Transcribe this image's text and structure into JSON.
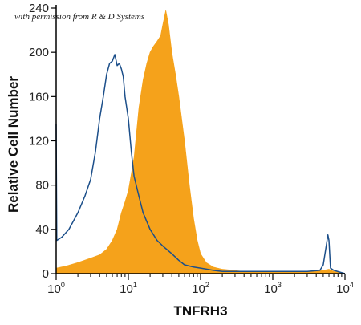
{
  "watermark": "with permission from R & D Systems",
  "chart_data": {
    "type": "area",
    "xlabel": "TNFRH3",
    "ylabel": "Relative Cell Number",
    "x_scale": "log",
    "xlim": [
      1,
      10000
    ],
    "ylim": [
      0,
      240
    ],
    "y_ticks": [
      0,
      40,
      80,
      120,
      160,
      200,
      240
    ],
    "x_ticks": [
      {
        "value": 1,
        "label": "10",
        "exp": "0"
      },
      {
        "value": 10,
        "label": "10",
        "exp": "1"
      },
      {
        "value": 100,
        "label": "10",
        "exp": "2"
      },
      {
        "value": 1000,
        "label": "10",
        "exp": "3"
      },
      {
        "value": 10000,
        "label": "10",
        "exp": "4"
      }
    ],
    "grid": false,
    "series": [
      {
        "style": "filled",
        "color": "#F5A21B",
        "points": [
          [
            1,
            5
          ],
          [
            1.4,
            7
          ],
          [
            2,
            10
          ],
          [
            3,
            14
          ],
          [
            4,
            17
          ],
          [
            5,
            22
          ],
          [
            6,
            30
          ],
          [
            7,
            40
          ],
          [
            8,
            55
          ],
          [
            9,
            65
          ],
          [
            10,
            75
          ],
          [
            12,
            105
          ],
          [
            14,
            150
          ],
          [
            16,
            175
          ],
          [
            18,
            190
          ],
          [
            20,
            200
          ],
          [
            22,
            205
          ],
          [
            25,
            210
          ],
          [
            28,
            215
          ],
          [
            30,
            225
          ],
          [
            33,
            238
          ],
          [
            36,
            225
          ],
          [
            40,
            200
          ],
          [
            45,
            180
          ],
          [
            50,
            160
          ],
          [
            60,
            120
          ],
          [
            70,
            80
          ],
          [
            80,
            50
          ],
          [
            90,
            30
          ],
          [
            100,
            18
          ],
          [
            120,
            10
          ],
          [
            150,
            6
          ],
          [
            200,
            4
          ],
          [
            400,
            2
          ],
          [
            1000,
            2
          ],
          [
            3000,
            2
          ],
          [
            5000,
            3
          ],
          [
            6000,
            4
          ],
          [
            7000,
            2
          ],
          [
            10000,
            0
          ]
        ]
      },
      {
        "style": "outline",
        "color": "#1C4F8A",
        "points": [
          [
            1,
            135
          ],
          [
            1.02,
            30
          ],
          [
            1.2,
            33
          ],
          [
            1.5,
            40
          ],
          [
            2,
            55
          ],
          [
            2.5,
            70
          ],
          [
            3,
            85
          ],
          [
            3.5,
            110
          ],
          [
            4,
            140
          ],
          [
            4.5,
            160
          ],
          [
            5,
            180
          ],
          [
            5.5,
            190
          ],
          [
            6,
            192
          ],
          [
            6.5,
            198
          ],
          [
            7,
            188
          ],
          [
            7.5,
            190
          ],
          [
            8,
            185
          ],
          [
            8.5,
            178
          ],
          [
            9,
            160
          ],
          [
            10,
            140
          ],
          [
            11,
            110
          ],
          [
            12,
            88
          ],
          [
            14,
            70
          ],
          [
            16,
            55
          ],
          [
            20,
            40
          ],
          [
            25,
            30
          ],
          [
            30,
            25
          ],
          [
            40,
            18
          ],
          [
            50,
            12
          ],
          [
            60,
            8
          ],
          [
            80,
            6
          ],
          [
            100,
            5
          ],
          [
            150,
            3
          ],
          [
            200,
            2
          ],
          [
            500,
            2
          ],
          [
            1000,
            2
          ],
          [
            3000,
            2
          ],
          [
            4500,
            3
          ],
          [
            5000,
            8
          ],
          [
            5500,
            25
          ],
          [
            5800,
            35
          ],
          [
            6000,
            30
          ],
          [
            6300,
            5
          ],
          [
            7000,
            3
          ],
          [
            10000,
            0
          ]
        ]
      }
    ]
  }
}
